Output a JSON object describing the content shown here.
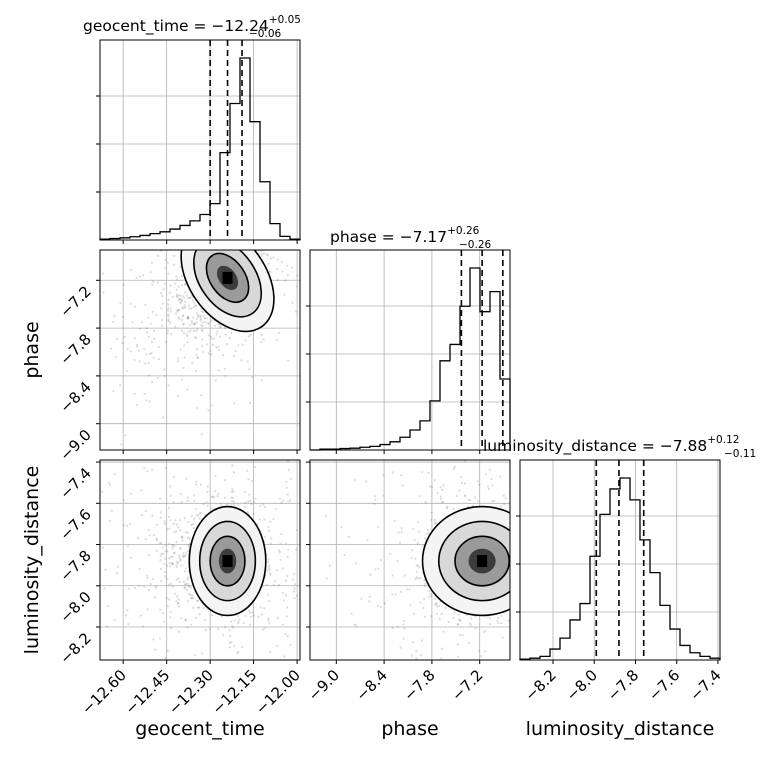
{
  "chart_data": {
    "type": "corner",
    "parameters": [
      "geocent_time",
      "phase",
      "luminosity_distance"
    ],
    "titles": [
      {
        "param": "geocent_time",
        "median": "−12.24",
        "plus": "+0.05",
        "minus": "−0.06",
        "label": "geocent_time = −12.24"
      },
      {
        "param": "phase",
        "median": "−7.17",
        "plus": "+0.26",
        "minus": "−0.26",
        "label": "phase = −7.17"
      },
      {
        "param": "luminosity_distance",
        "median": "−7.88",
        "plus": "+0.12",
        "minus": "−0.11",
        "label": "luminosity_distance = −7.88"
      }
    ],
    "axis_labels": {
      "x": [
        "geocent_time",
        "phase",
        "luminosity_distance"
      ],
      "y": [
        "phase",
        "luminosity_distance"
      ]
    },
    "ranges": {
      "geocent_time": [
        -12.68,
        -11.99
      ],
      "phase": [
        -9.33,
        -6.82
      ],
      "luminosity_distance": [
        -8.36,
        -7.39
      ]
    },
    "ticks": {
      "geocent_time": {
        "values": [
          -12.6,
          -12.45,
          -12.3,
          -12.15,
          -12.0
        ],
        "labels": [
          "−12.60",
          "−12.45",
          "−12.30",
          "−12.15",
          "−12.00"
        ]
      },
      "phase": {
        "values": [
          -9.0,
          -8.4,
          -7.8,
          -7.2
        ],
        "labels": [
          "−9.0",
          "−8.4",
          "−7.8",
          "−7.2"
        ]
      },
      "luminosity_distance": {
        "values": [
          -8.2,
          -8.0,
          -7.8,
          -7.6,
          -7.4
        ],
        "labels": [
          "−8.2",
          "−8.0",
          "−7.8",
          "−7.6",
          "−7.4"
        ]
      }
    },
    "quantiles": {
      "geocent_time": [
        -12.3,
        -12.24,
        -12.19
      ],
      "phase": [
        -7.43,
        -7.17,
        -6.91
      ],
      "luminosity_distance": [
        -7.99,
        -7.88,
        -7.76
      ]
    },
    "histograms": {
      "geocent_time": {
        "edges_range": [
          -12.68,
          -11.99
        ],
        "counts": [
          0.005,
          0.008,
          0.012,
          0.018,
          0.025,
          0.035,
          0.045,
          0.06,
          0.08,
          0.105,
          0.14,
          0.2,
          0.48,
          0.75,
          1.0,
          0.65,
          0.32,
          0.09,
          0.02,
          0.005
        ]
      },
      "phase": {
        "edges_range": [
          -9.33,
          -6.82
        ],
        "counts": [
          0.0,
          0.005,
          0.005,
          0.008,
          0.01,
          0.015,
          0.02,
          0.03,
          0.045,
          0.07,
          0.11,
          0.16,
          0.27,
          0.49,
          0.58,
          0.79,
          1.0,
          0.76,
          0.87,
          0.39
        ]
      },
      "luminosity_distance": {
        "edges_range": [
          -8.36,
          -7.39
        ],
        "counts": [
          0.005,
          0.01,
          0.02,
          0.06,
          0.12,
          0.22,
          0.31,
          0.57,
          0.8,
          0.94,
          1.0,
          0.88,
          0.66,
          0.48,
          0.3,
          0.17,
          0.08,
          0.04,
          0.02,
          0.01
        ]
      }
    },
    "grid": true,
    "colors": {
      "line": "#000000",
      "grid": "#b0b0b0",
      "sample": "#5a5a5a"
    }
  }
}
